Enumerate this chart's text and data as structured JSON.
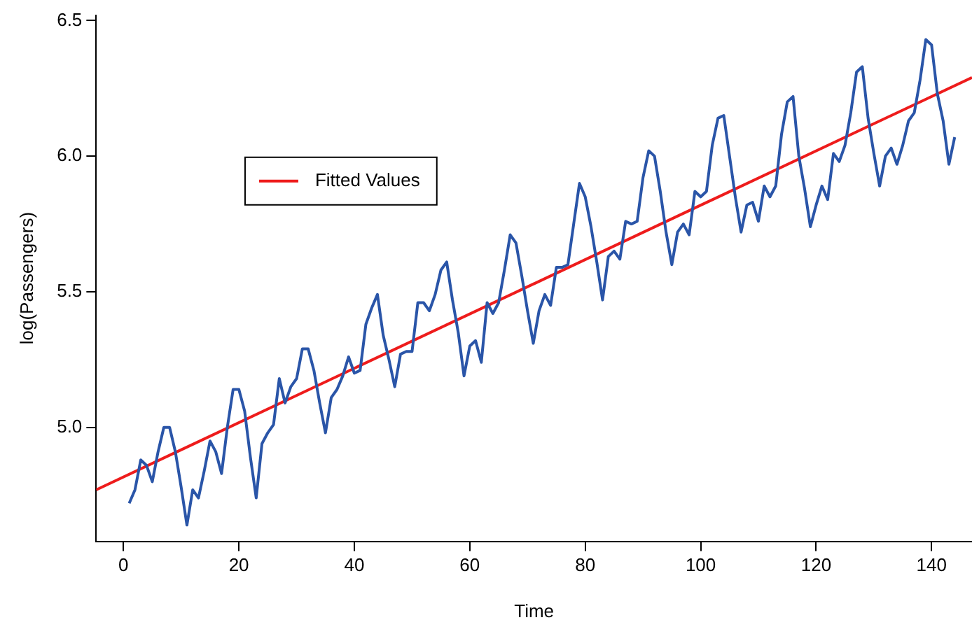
{
  "chart_data": {
    "type": "line",
    "xlabel": "Time",
    "ylabel": "log(Passengers)",
    "xlim": [
      -4.72,
      147
    ],
    "ylim": [
      4.58,
      6.52
    ],
    "xticks": [
      0,
      20,
      40,
      60,
      80,
      100,
      120,
      140
    ],
    "yticks": [
      {
        "value": 5,
        "label": "5.0"
      },
      {
        "value": 5.5,
        "label": "5.5"
      },
      {
        "value": 6,
        "label": "6.0"
      },
      {
        "value": 6.5,
        "label": "6.5"
      }
    ],
    "grid": false,
    "legend": "top left",
    "marker": "none",
    "line_style": "solid",
    "series": [
      {
        "color": "#2a55a8",
        "x": [
          1,
          2,
          3,
          4,
          5,
          6,
          7,
          8,
          9,
          10,
          11,
          12,
          13,
          14,
          15,
          16,
          17,
          18,
          19,
          20,
          21,
          22,
          23,
          24,
          25,
          26,
          27,
          28,
          29,
          30,
          31,
          32,
          33,
          34,
          35,
          36,
          37,
          38,
          39,
          40,
          41,
          42,
          43,
          44,
          45,
          46,
          47,
          48,
          49,
          50,
          51,
          52,
          53,
          54,
          55,
          56,
          57,
          58,
          59,
          60,
          61,
          62,
          63,
          64,
          65,
          66,
          67,
          68,
          69,
          70,
          71,
          72,
          73,
          74,
          75,
          76,
          77,
          78,
          79,
          80,
          81,
          82,
          83,
          84,
          85,
          86,
          87,
          88,
          89,
          90,
          91,
          92,
          93,
          94,
          95,
          96,
          97,
          98,
          99,
          100,
          101,
          102,
          103,
          104,
          105,
          106,
          107,
          108,
          109,
          110,
          111,
          112,
          113,
          114,
          115,
          116,
          117,
          118,
          119,
          120,
          121,
          122,
          123,
          124,
          125,
          126,
          127,
          128,
          129,
          130,
          131,
          132,
          133,
          134,
          135,
          136,
          137,
          138,
          139,
          140,
          141,
          142,
          143,
          144
        ],
        "values": [
          4.72,
          4.77,
          4.88,
          4.86,
          4.8,
          4.91,
          5.0,
          5.0,
          4.91,
          4.78,
          4.64,
          4.77,
          4.74,
          4.84,
          4.95,
          4.91,
          4.83,
          5.0,
          5.14,
          5.14,
          5.06,
          4.89,
          4.74,
          4.94,
          4.98,
          5.01,
          5.18,
          5.09,
          5.15,
          5.18,
          5.29,
          5.29,
          5.21,
          5.09,
          4.98,
          5.11,
          5.14,
          5.19,
          5.26,
          5.2,
          5.21,
          5.38,
          5.44,
          5.49,
          5.34,
          5.25,
          5.15,
          5.27,
          5.28,
          5.28,
          5.46,
          5.46,
          5.43,
          5.49,
          5.58,
          5.61,
          5.47,
          5.35,
          5.19,
          5.3,
          5.32,
          5.24,
          5.46,
          5.42,
          5.46,
          5.58,
          5.71,
          5.68,
          5.56,
          5.43,
          5.31,
          5.43,
          5.49,
          5.45,
          5.59,
          5.59,
          5.6,
          5.75,
          5.9,
          5.85,
          5.74,
          5.61,
          5.47,
          5.63,
          5.65,
          5.62,
          5.76,
          5.75,
          5.76,
          5.92,
          6.02,
          6.0,
          5.87,
          5.72,
          5.6,
          5.72,
          5.75,
          5.71,
          5.87,
          5.85,
          5.87,
          6.04,
          6.14,
          6.15,
          6.0,
          5.85,
          5.72,
          5.82,
          5.83,
          5.76,
          5.89,
          5.85,
          5.89,
          6.08,
          6.2,
          6.22,
          6.0,
          5.88,
          5.74,
          5.82,
          5.89,
          5.84,
          6.01,
          5.98,
          6.04,
          6.16,
          6.31,
          6.33,
          6.14,
          6.01,
          5.89,
          6.0,
          6.03,
          5.97,
          6.04,
          6.13,
          6.16,
          6.28,
          6.43,
          6.41,
          6.23,
          6.13,
          5.97,
          6.07
        ]
      },
      {
        "name": "Fitted Values",
        "color": "#ee1c1c",
        "x": [
          -4.72,
          147
        ],
        "values": [
          4.77,
          6.29
        ]
      }
    ]
  }
}
